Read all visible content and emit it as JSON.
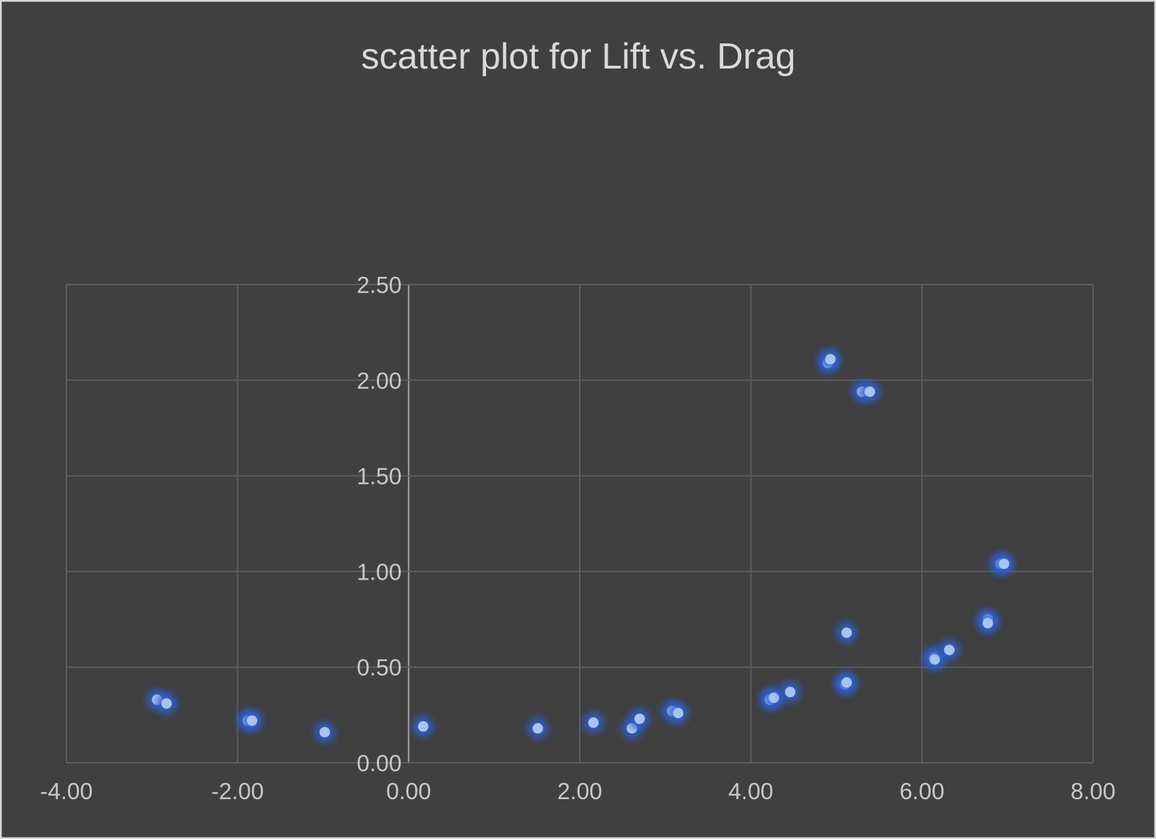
{
  "chart_data": {
    "type": "scatter",
    "title": "scatter plot for Lift vs. Drag",
    "xlabel": "",
    "ylabel": "",
    "xlim": [
      -4,
      8
    ],
    "ylim": [
      0,
      2.5
    ],
    "x_ticks": [
      "-4.00",
      "-2.00",
      "0.00",
      "2.00",
      "4.00",
      "6.00",
      "8.00"
    ],
    "y_ticks": [
      "0.00",
      "0.50",
      "1.00",
      "1.50",
      "2.00",
      "2.50"
    ],
    "grid": true,
    "legend": "none",
    "marker_color": "#a8c4ee",
    "glow_color": "#2f5fd0",
    "points": [
      {
        "x": -2.94,
        "y": 0.33
      },
      {
        "x": -2.83,
        "y": 0.31
      },
      {
        "x": -1.88,
        "y": 0.22
      },
      {
        "x": -1.83,
        "y": 0.22
      },
      {
        "x": -0.98,
        "y": 0.16
      },
      {
        "x": 0.17,
        "y": 0.19
      },
      {
        "x": 1.51,
        "y": 0.18
      },
      {
        "x": 2.16,
        "y": 0.21
      },
      {
        "x": 2.61,
        "y": 0.18
      },
      {
        "x": 2.7,
        "y": 0.23
      },
      {
        "x": 3.08,
        "y": 0.27
      },
      {
        "x": 3.15,
        "y": 0.26
      },
      {
        "x": 4.22,
        "y": 0.33
      },
      {
        "x": 4.27,
        "y": 0.34
      },
      {
        "x": 4.46,
        "y": 0.37
      },
      {
        "x": 4.9,
        "y": 2.09
      },
      {
        "x": 4.93,
        "y": 2.11
      },
      {
        "x": 5.1,
        "y": 0.41
      },
      {
        "x": 5.12,
        "y": 0.42
      },
      {
        "x": 5.12,
        "y": 0.68
      },
      {
        "x": 5.3,
        "y": 1.94
      },
      {
        "x": 5.39,
        "y": 1.94
      },
      {
        "x": 6.14,
        "y": 0.55
      },
      {
        "x": 6.15,
        "y": 0.54
      },
      {
        "x": 6.32,
        "y": 0.59
      },
      {
        "x": 6.77,
        "y": 0.75
      },
      {
        "x": 6.77,
        "y": 0.73
      },
      {
        "x": 6.92,
        "y": 1.04
      },
      {
        "x": 6.96,
        "y": 1.04
      }
    ]
  }
}
